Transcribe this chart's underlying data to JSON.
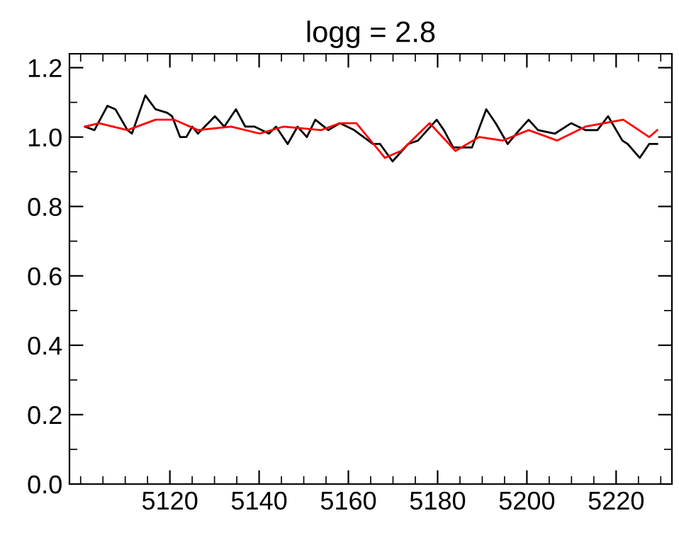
{
  "chart_data": {
    "type": "line",
    "title": "logg = 2.8",
    "xlim": [
      5097.5,
      5232.5
    ],
    "xticks": [
      5120,
      5140,
      5160,
      5180,
      5200,
      5220
    ],
    "ylim": [
      0,
      1.24
    ],
    "yticks": [
      {
        "value": 0,
        "label": "0.0"
      },
      {
        "value": 0.2,
        "label": "0.2"
      },
      {
        "value": 0.4,
        "label": "0.4"
      },
      {
        "value": 0.6,
        "label": "0.6"
      },
      {
        "value": 0.8,
        "label": "0.8"
      },
      {
        "value": 1.0,
        "label": "1.0"
      },
      {
        "value": 1.2,
        "label": "1.2"
      }
    ],
    "grid": false,
    "legend": false,
    "series": [
      {
        "color": "#000000",
        "x": [
          5101.0,
          5103.1,
          5106.0,
          5107.8,
          5110.5,
          5111.5,
          5114.5,
          5116.8,
          5119.4,
          5120.5,
          5122.3,
          5123.7,
          5125.0,
          5126.3,
          5130.1,
          5132.2,
          5134.8,
          5136.9,
          5139.0,
          5142.2,
          5143.8,
          5146.4,
          5148.6,
          5150.7,
          5152.6,
          5155.5,
          5158.1,
          5161.3,
          5165.5,
          5167.1,
          5169.9,
          5173.4,
          5175.6,
          5179.8,
          5181.4,
          5183.5,
          5186.1,
          5187.7,
          5190.9,
          5193.0,
          5195.7,
          5198.3,
          5200.4,
          5202.5,
          5206.3,
          5209.9,
          5213.1,
          5215.8,
          5218.2,
          5221.4,
          5222.6,
          5225.3,
          5227.4,
          5229.2
        ],
        "values": [
          1.03,
          1.02,
          1.09,
          1.08,
          1.02,
          1.01,
          1.12,
          1.08,
          1.07,
          1.06,
          1.0,
          1.0,
          1.03,
          1.01,
          1.06,
          1.03,
          1.08,
          1.03,
          1.03,
          1.01,
          1.03,
          0.98,
          1.03,
          1.0,
          1.05,
          1.02,
          1.04,
          1.02,
          0.98,
          0.98,
          0.93,
          0.98,
          0.99,
          1.05,
          1.02,
          0.97,
          0.97,
          0.97,
          1.08,
          1.04,
          0.98,
          1.02,
          1.05,
          1.02,
          1.01,
          1.04,
          1.02,
          1.02,
          1.06,
          0.99,
          0.98,
          0.94,
          0.98,
          0.98
        ]
      },
      {
        "color": "#ff0000",
        "x": [
          5101.0,
          5104.1,
          5110.5,
          5116.8,
          5121.0,
          5126.3,
          5133.7,
          5140.1,
          5145.4,
          5153.9,
          5158.1,
          5161.8,
          5168.2,
          5171.8,
          5178.2,
          5184.0,
          5189.3,
          5194.6,
          5200.4,
          5206.8,
          5213.1,
          5221.6,
          5227.4,
          5229.2
        ],
        "values": [
          1.03,
          1.04,
          1.02,
          1.05,
          1.05,
          1.02,
          1.03,
          1.01,
          1.03,
          1.02,
          1.04,
          1.04,
          0.94,
          0.96,
          1.04,
          0.96,
          1.0,
          0.99,
          1.02,
          0.99,
          1.03,
          1.05,
          1.0,
          1.02
        ]
      }
    ]
  }
}
